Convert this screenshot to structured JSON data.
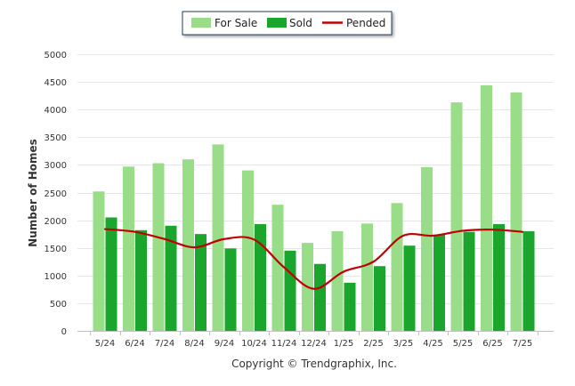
{
  "chart_data": {
    "type": "bar",
    "title": "",
    "xlabel": "",
    "ylabel": "Number of Homes",
    "ylim": [
      0,
      5000
    ],
    "yticks": [
      0,
      500,
      1000,
      1500,
      2000,
      2500,
      3000,
      3500,
      4000,
      4500,
      5000
    ],
    "grid": true,
    "legend_position": "top-center",
    "categories": [
      "5/24",
      "6/24",
      "7/24",
      "8/24",
      "9/24",
      "10/24",
      "11/24",
      "12/24",
      "1/25",
      "2/25",
      "3/25",
      "4/25",
      "5/25",
      "6/25",
      "7/25"
    ],
    "series": [
      {
        "name": "For Sale",
        "kind": "bar",
        "color": "#99dd88",
        "values": [
          2520,
          2970,
          3030,
          3100,
          3370,
          2900,
          2280,
          1590,
          1800,
          1940,
          2310,
          2960,
          4130,
          4440,
          4310
        ]
      },
      {
        "name": "Sold",
        "kind": "bar",
        "color": "#1aa52c",
        "values": [
          2050,
          1820,
          1900,
          1750,
          1490,
          1930,
          1450,
          1210,
          870,
          1170,
          1540,
          1740,
          1790,
          1930,
          1800
        ]
      },
      {
        "name": "Pended",
        "kind": "line",
        "color": "#c00000",
        "values": [
          1840,
          1790,
          1660,
          1510,
          1660,
          1650,
          1150,
          760,
          1070,
          1250,
          1720,
          1720,
          1810,
          1830,
          1790
        ]
      }
    ],
    "credit": "Copyright © Trendgraphix, Inc."
  }
}
